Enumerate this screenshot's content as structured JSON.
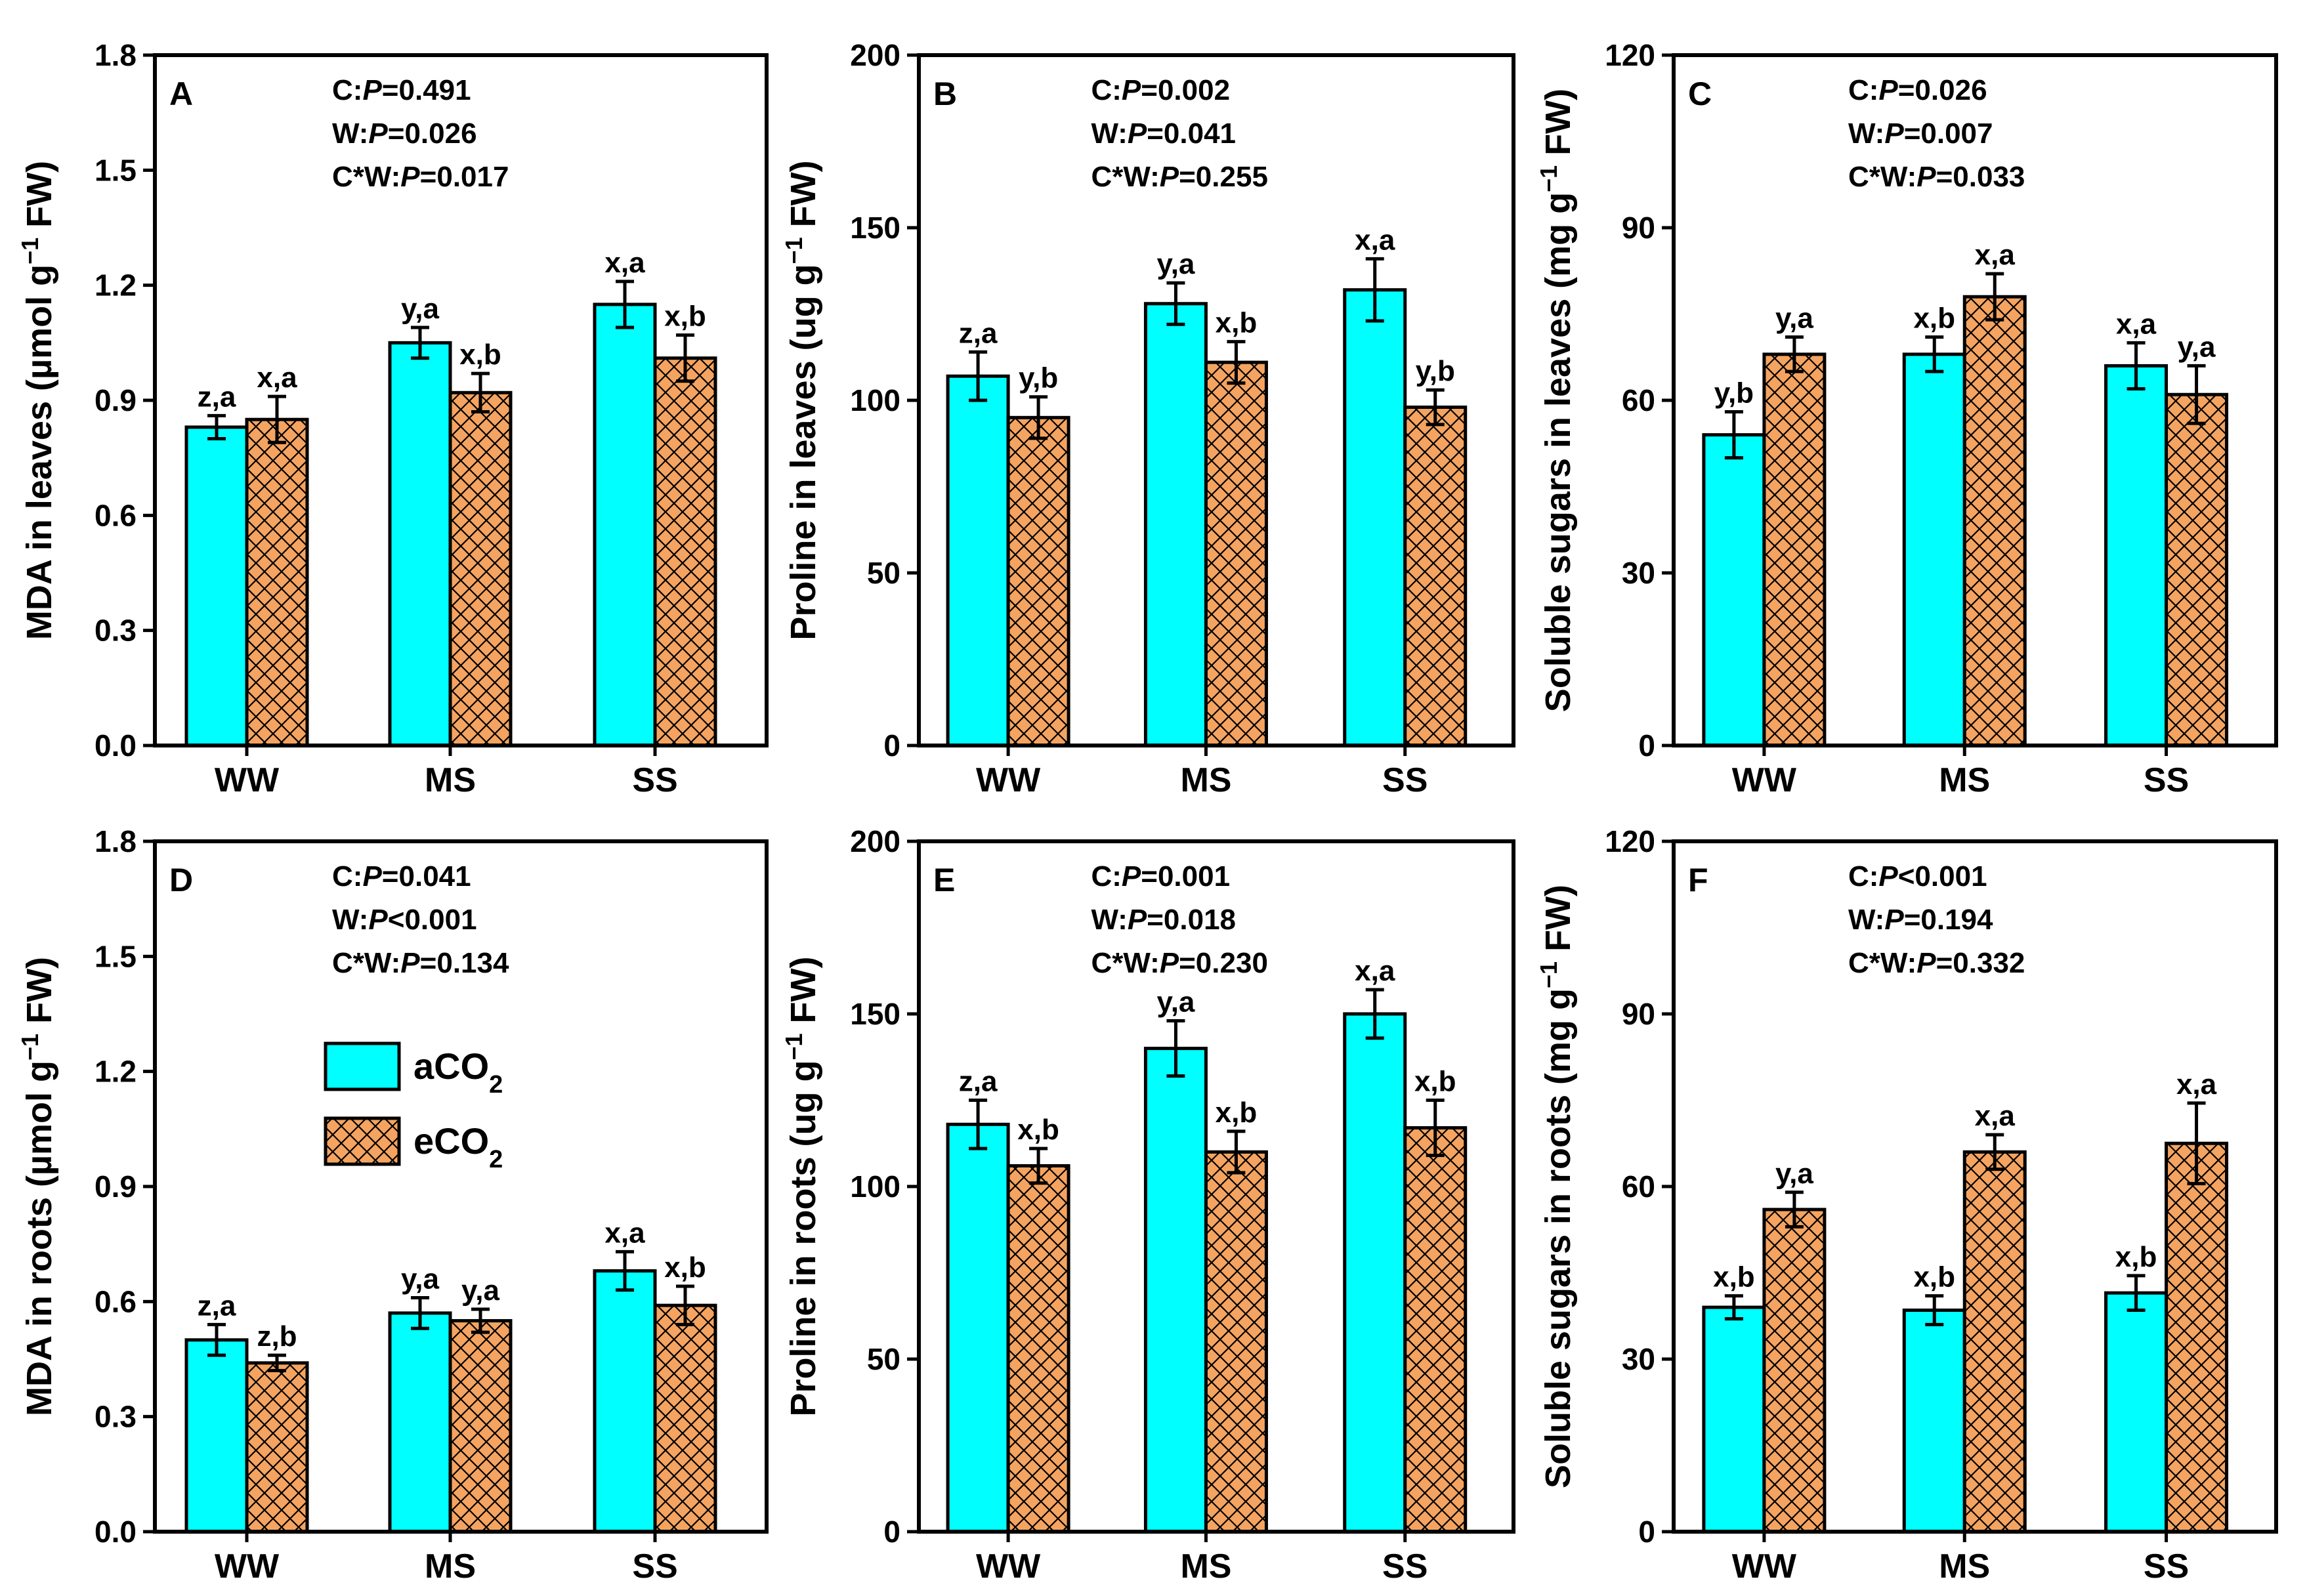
{
  "colors": {
    "aCO2": "#00ffff",
    "eCO2": "#f4a460",
    "stroke": "#000000"
  },
  "legend": {
    "items": [
      {
        "key": "aCO2",
        "label": "aCO",
        "sub": "2",
        "pattern": "solid"
      },
      {
        "key": "eCO2",
        "label": "eCO",
        "sub": "2",
        "pattern": "crosshatch"
      }
    ]
  },
  "chart_data": [
    {
      "panel": "A",
      "type": "bar",
      "ylabel": "MDA in leaves (µmol g⁻¹ FW)",
      "ylabel_parts": [
        "MDA in leaves (µmol g",
        "−1",
        " FW)"
      ],
      "ylim": [
        0,
        1.8
      ],
      "yticks": [
        "0.0",
        "0.3",
        "0.6",
        "0.9",
        "1.2",
        "1.5",
        "1.8"
      ],
      "categories": [
        "WW",
        "MS",
        "SS"
      ],
      "stats": [
        {
          "pre": "C:",
          "p": "P",
          "post": "=0.491"
        },
        {
          "pre": "W:",
          "p": "P",
          "post": "=0.026"
        },
        {
          "pre": "C*W:",
          "p": "P",
          "post": "=0.017"
        }
      ],
      "series": [
        {
          "name": "aCO2",
          "values": [
            0.83,
            1.05,
            1.15
          ],
          "err": [
            0.03,
            0.04,
            0.06
          ],
          "labels": [
            "z,a",
            "y,a",
            "x,a"
          ]
        },
        {
          "name": "eCO2",
          "values": [
            0.85,
            0.92,
            1.01
          ],
          "err": [
            0.06,
            0.05,
            0.06
          ],
          "labels": [
            "x,a",
            "x,b",
            "x,b"
          ]
        }
      ]
    },
    {
      "panel": "B",
      "type": "bar",
      "ylabel": "Proline in leaves (ug g⁻¹ FW)",
      "ylabel_parts": [
        "Proline in leaves (ug g",
        "−1",
        " FW)"
      ],
      "ylim": [
        0,
        200
      ],
      "yticks": [
        "0",
        "50",
        "100",
        "150",
        "200"
      ],
      "categories": [
        "WW",
        "MS",
        "SS"
      ],
      "stats": [
        {
          "pre": "C:",
          "p": "P",
          "post": "=0.002"
        },
        {
          "pre": "W:",
          "p": "P",
          "post": "=0.041"
        },
        {
          "pre": "C*W:",
          "p": "P",
          "post": "=0.255"
        }
      ],
      "series": [
        {
          "name": "aCO2",
          "values": [
            107,
            128,
            132
          ],
          "err": [
            7,
            6,
            9
          ],
          "labels": [
            "z,a",
            "y,a",
            "x,a"
          ]
        },
        {
          "name": "eCO2",
          "values": [
            95,
            111,
            98
          ],
          "err": [
            6,
            6,
            5
          ],
          "labels": [
            "y,b",
            "x,b",
            "y,b"
          ]
        }
      ]
    },
    {
      "panel": "C",
      "type": "bar",
      "ylabel": "Soluble sugars in leaves (mg g⁻¹ FW)",
      "ylabel_parts": [
        "Soluble sugars in leaves (mg g",
        "−1",
        " FW)"
      ],
      "ylim": [
        0,
        120
      ],
      "yticks": [
        "0",
        "30",
        "60",
        "90",
        "120"
      ],
      "categories": [
        "WW",
        "MS",
        "SS"
      ],
      "stats": [
        {
          "pre": "C:",
          "p": "P",
          "post": "=0.026"
        },
        {
          "pre": "W:",
          "p": "P",
          "post": "=0.007"
        },
        {
          "pre": "C*W:",
          "p": "P",
          "post": "=0.033"
        }
      ],
      "series": [
        {
          "name": "aCO2",
          "values": [
            54,
            68,
            66
          ],
          "err": [
            4,
            3,
            4
          ],
          "labels": [
            "y,b",
            "x,b",
            "x,a"
          ]
        },
        {
          "name": "eCO2",
          "values": [
            68,
            78,
            61
          ],
          "err": [
            3,
            4,
            5
          ],
          "labels": [
            "y,a",
            "x,a",
            "y,a"
          ]
        }
      ]
    },
    {
      "panel": "D",
      "type": "bar",
      "ylabel": "MDA in roots (µmol g⁻¹ FW)",
      "ylabel_parts": [
        "MDA in roots (µmol g",
        "−1",
        " FW)"
      ],
      "ylim": [
        0,
        1.8
      ],
      "yticks": [
        "0.0",
        "0.3",
        "0.6",
        "0.9",
        "1.2",
        "1.5",
        "1.8"
      ],
      "categories": [
        "WW",
        "MS",
        "SS"
      ],
      "stats": [
        {
          "pre": "C:",
          "p": "P",
          "post": "=0.041"
        },
        {
          "pre": "W:",
          "p": "P",
          "post": "<0.001"
        },
        {
          "pre": "C*W:",
          "p": "P",
          "post": "=0.134"
        }
      ],
      "series": [
        {
          "name": "aCO2",
          "values": [
            0.5,
            0.57,
            0.68
          ],
          "err": [
            0.04,
            0.04,
            0.05
          ],
          "labels": [
            "z,a",
            "y,a",
            "x,a"
          ]
        },
        {
          "name": "eCO2",
          "values": [
            0.44,
            0.55,
            0.59
          ],
          "err": [
            0.02,
            0.03,
            0.05
          ],
          "labels": [
            "z,b",
            "y,a",
            "x,b"
          ]
        }
      ]
    },
    {
      "panel": "E",
      "type": "bar",
      "ylabel": "Proline in roots (ug g⁻¹ FW)",
      "ylabel_parts": [
        "Proline in roots (ug g",
        "−1",
        " FW)"
      ],
      "ylim": [
        0,
        200
      ],
      "yticks": [
        "0",
        "50",
        "100",
        "150",
        "200"
      ],
      "categories": [
        "WW",
        "MS",
        "SS"
      ],
      "stats": [
        {
          "pre": "C:",
          "p": "P",
          "post": "=0.001"
        },
        {
          "pre": "W:",
          "p": "P",
          "post": "=0.018"
        },
        {
          "pre": "C*W:",
          "p": "P",
          "post": "=0.230"
        }
      ],
      "series": [
        {
          "name": "aCO2",
          "values": [
            118,
            140,
            150
          ],
          "err": [
            7,
            8,
            7
          ],
          "labels": [
            "z,a",
            "y,a",
            "x,a"
          ]
        },
        {
          "name": "eCO2",
          "values": [
            106,
            110,
            117
          ],
          "err": [
            5,
            6,
            8
          ],
          "labels": [
            "x,b",
            "x,b",
            "x,b"
          ]
        }
      ]
    },
    {
      "panel": "F",
      "type": "bar",
      "ylabel": "Soluble sugars in roots (mg g⁻¹ FW)",
      "ylabel_parts": [
        "Soluble sugars in roots (mg g",
        "−1",
        " FW)"
      ],
      "ylim": [
        0,
        120
      ],
      "yticks": [
        "0",
        "30",
        "60",
        "90",
        "120"
      ],
      "categories": [
        "WW",
        "MS",
        "SS"
      ],
      "stats": [
        {
          "pre": "C:",
          "p": "P",
          "post": "<0.001"
        },
        {
          "pre": "W:",
          "p": "P",
          "post": "=0.194"
        },
        {
          "pre": "C*W:",
          "p": "P",
          "post": "=0.332"
        }
      ],
      "series": [
        {
          "name": "aCO2",
          "values": [
            39,
            38.5,
            41.5
          ],
          "err": [
            2,
            2.5,
            3
          ],
          "labels": [
            "x,b",
            "x,b",
            "x,b"
          ]
        },
        {
          "name": "eCO2",
          "values": [
            56,
            66,
            67.5
          ],
          "err": [
            3,
            3,
            7
          ],
          "labels": [
            "y,a",
            "x,a",
            "x,a"
          ]
        }
      ]
    }
  ]
}
